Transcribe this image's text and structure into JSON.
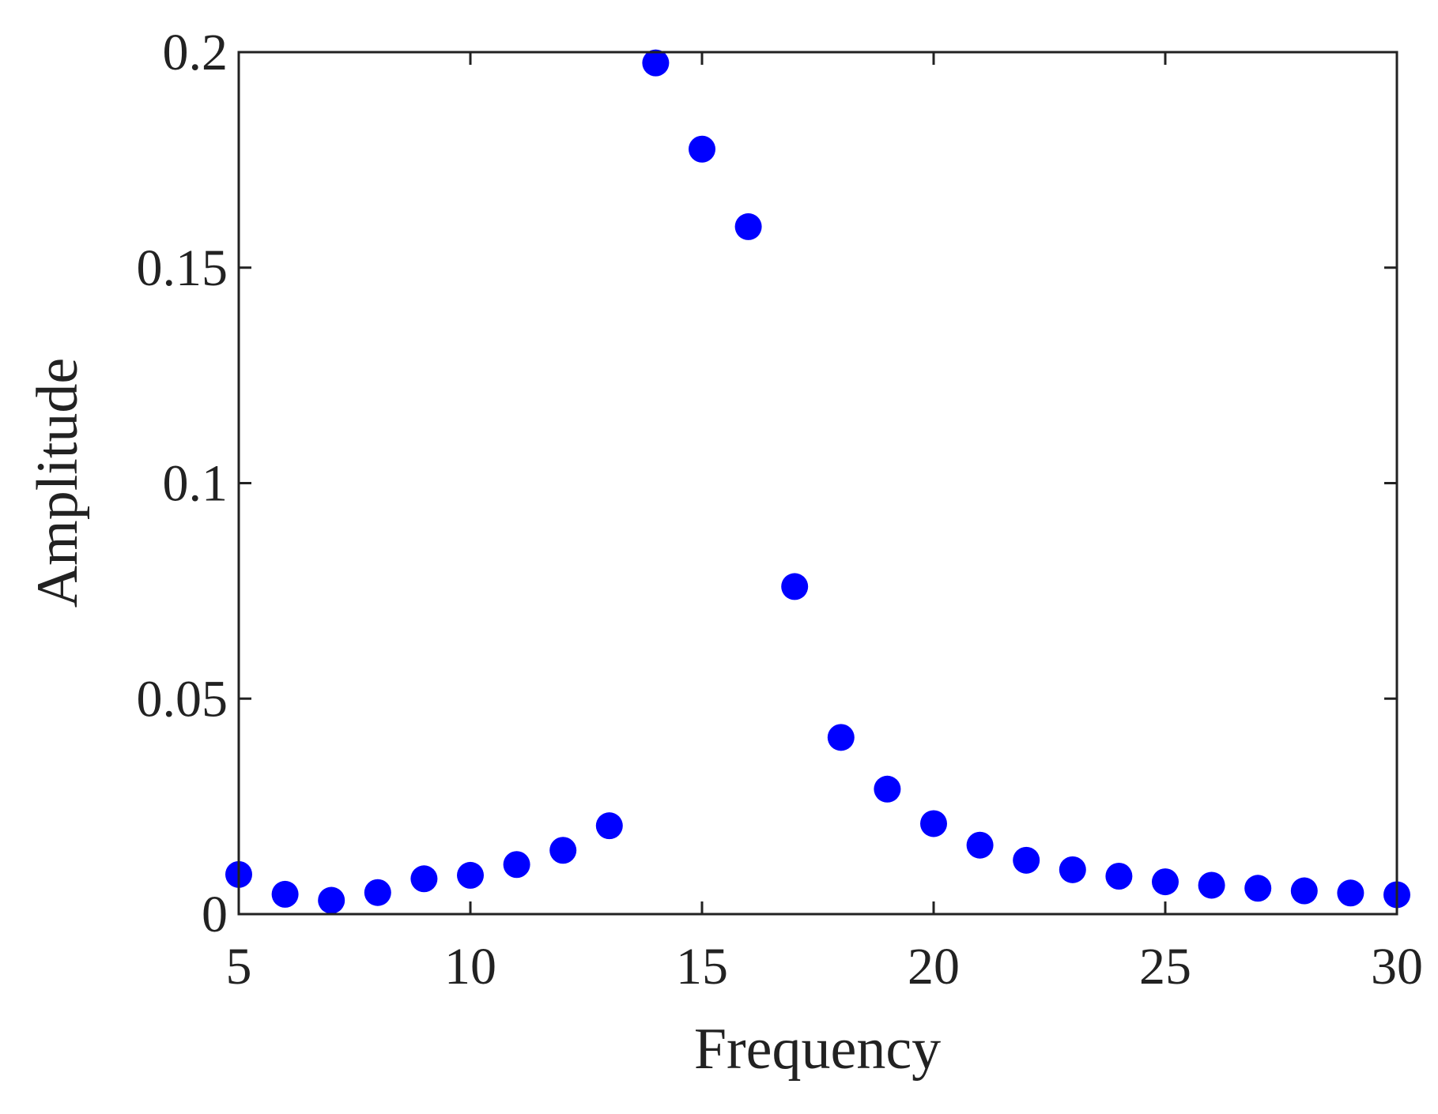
{
  "chart_data": {
    "type": "scatter",
    "title": "",
    "xlabel": "Frequency",
    "ylabel": "Amplitude",
    "xlim": [
      5,
      30
    ],
    "ylim": [
      0,
      0.2
    ],
    "xticks": [
      5,
      10,
      15,
      20,
      25,
      30
    ],
    "xtick_labels": [
      "5",
      "10",
      "15",
      "20",
      "25",
      "30"
    ],
    "yticks": [
      0,
      0.05,
      0.1,
      0.15,
      0.2
    ],
    "ytick_labels": [
      "0",
      "0.05",
      "0.1",
      "0.15",
      "0.2"
    ],
    "grid": false,
    "legend": "none",
    "marker_color": "#0000ff",
    "axis_color": "#222222",
    "series": [
      {
        "x": [
          5,
          6,
          7,
          8,
          9,
          10,
          11,
          12,
          13,
          14,
          15,
          16,
          17,
          18,
          19,
          20,
          21,
          22,
          23,
          24,
          25,
          26,
          27,
          28,
          29,
          30
        ],
        "y": [
          0.0092,
          0.0046,
          0.0032,
          0.005,
          0.0082,
          0.009,
          0.0115,
          0.0148,
          0.0205,
          0.1975,
          0.1775,
          0.1595,
          0.076,
          0.041,
          0.029,
          0.021,
          0.016,
          0.0125,
          0.0103,
          0.0088,
          0.0075,
          0.0067,
          0.006,
          0.0054,
          0.0049,
          0.0045
        ]
      }
    ]
  }
}
